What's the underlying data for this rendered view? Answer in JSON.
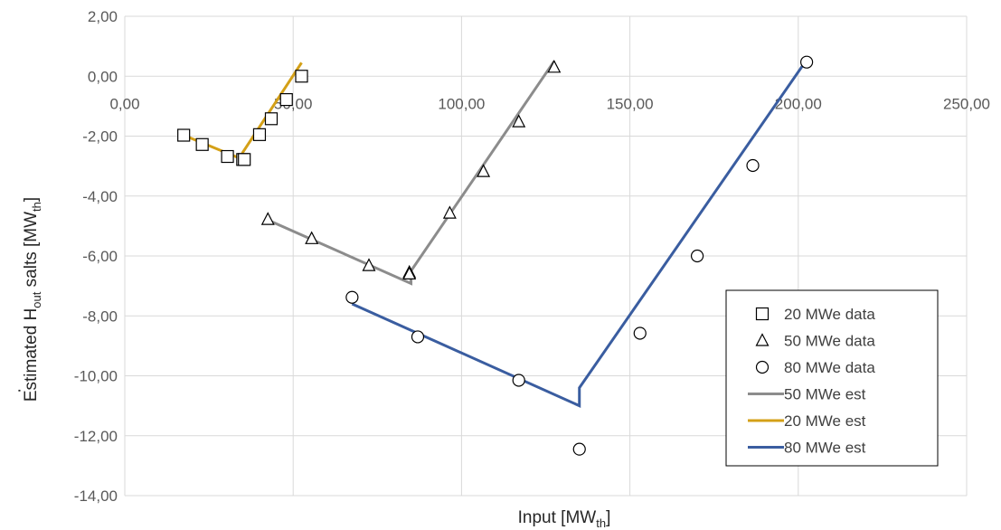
{
  "chart_data": {
    "type": "scatter",
    "title": "",
    "xlabel": {
      "main": "Input [MW",
      "sub": "th",
      "end": "]"
    },
    "ylabel": {
      "main": "Estimated H",
      "sub": "out",
      "mid": " salts  [MW",
      "sub2": "th",
      "end": "]"
    },
    "xlim": [
      0,
      250
    ],
    "ylim": [
      -14,
      2
    ],
    "x_ticks": [
      0,
      50,
      100,
      150,
      200,
      250
    ],
    "x_tick_labels": [
      "0,00",
      "50,00",
      "100,00",
      "150,00",
      "200,00",
      "250,00"
    ],
    "y_ticks": [
      2,
      0,
      -2,
      -4,
      -6,
      -8,
      -10,
      -12,
      -14
    ],
    "y_tick_labels": [
      "2,00",
      "0,00",
      "-2,00",
      "-4,00",
      "-6,00",
      "-8,00",
      "-10,00",
      "-12,00",
      "-14,00"
    ],
    "grid": true,
    "legend_position": "bottom-right",
    "series": [
      {
        "name": "20 MWe data",
        "kind": "marker",
        "marker": "square",
        "color": "#000000",
        "points": [
          [
            17.5,
            -1.97
          ],
          [
            23,
            -2.28
          ],
          [
            30.5,
            -2.68
          ],
          [
            35,
            -2.78
          ],
          [
            35.5,
            -2.78
          ],
          [
            40,
            -1.95
          ],
          [
            43.5,
            -1.42
          ],
          [
            48,
            -0.78
          ],
          [
            52.5,
            0.0
          ]
        ]
      },
      {
        "name": "50 MWe data",
        "kind": "marker",
        "marker": "triangle",
        "color": "#000000",
        "points": [
          [
            42.5,
            -4.78
          ],
          [
            55.5,
            -5.42
          ],
          [
            72.5,
            -6.32
          ],
          [
            84.5,
            -6.55
          ],
          [
            84.5,
            -6.6
          ],
          [
            96.5,
            -4.57
          ],
          [
            106.5,
            -3.18
          ],
          [
            117,
            -1.52
          ],
          [
            127.5,
            0.3
          ]
        ]
      },
      {
        "name": "80 MWe data",
        "kind": "marker",
        "marker": "circle",
        "color": "#000000",
        "points": [
          [
            67.5,
            -7.38
          ],
          [
            87,
            -8.7
          ],
          [
            117,
            -10.15
          ],
          [
            135,
            -12.45
          ],
          [
            153,
            -8.58
          ],
          [
            170,
            -6.0
          ],
          [
            186.5,
            -2.98
          ],
          [
            202.5,
            0.47
          ]
        ]
      },
      {
        "name": "50 MWe est",
        "kind": "line",
        "color": "#8c8c8c",
        "points": [
          [
            42.5,
            -4.8
          ],
          [
            85,
            -6.92
          ],
          [
            85,
            -6.5
          ],
          [
            127.5,
            0.5
          ]
        ]
      },
      {
        "name": "20 MWe est",
        "kind": "line",
        "color": "#d4a017",
        "points": [
          [
            17.5,
            -1.97
          ],
          [
            35,
            -2.78
          ],
          [
            35,
            -2.55
          ],
          [
            52.5,
            0.45
          ]
        ]
      },
      {
        "name": "80 MWe est",
        "kind": "line",
        "color": "#3a5da0",
        "points": [
          [
            67.5,
            -7.6
          ],
          [
            135,
            -11.0
          ],
          [
            135,
            -10.4
          ],
          [
            202.5,
            0.55
          ]
        ]
      }
    ]
  }
}
